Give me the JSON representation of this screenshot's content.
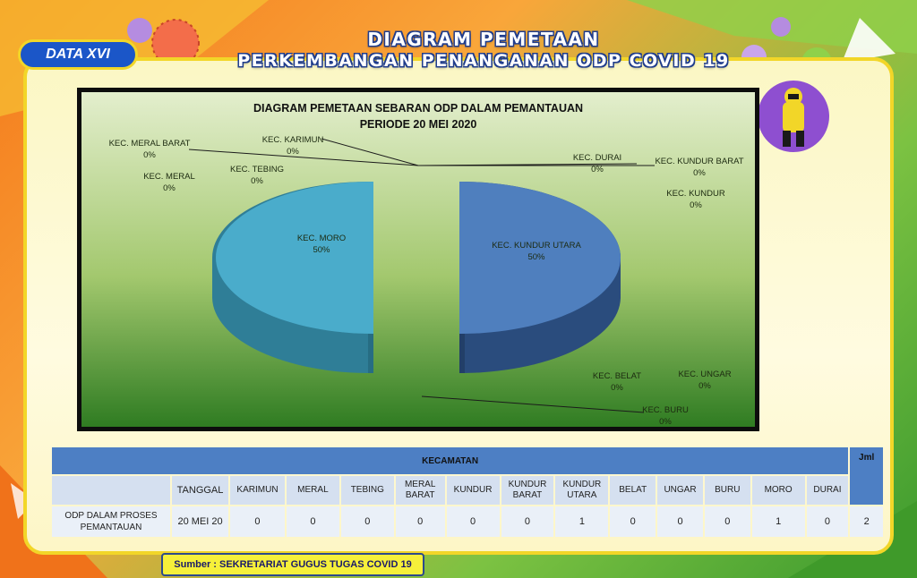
{
  "badge": "DATA XVI",
  "header": {
    "title_line1": "DIAGRAM PEMETAAN",
    "title_line2": "PERKEMBANGAN PENANGANAN ODP  COVID 19"
  },
  "chart_data": {
    "type": "pie",
    "title_line1": "DIAGRAM PEMETAAN SEBARAN ODP DALAM PEMANTAUAN",
    "title_line2": "PERIODE 20 MEI 2020",
    "slices": [
      {
        "name": "KEC. KARIMUN",
        "value": 0,
        "percent": "0%"
      },
      {
        "name": "KEC.  MERAL",
        "value": 0,
        "percent": "0%"
      },
      {
        "name": "KEC. TEBING",
        "value": 0,
        "percent": "0%"
      },
      {
        "name": "KEC. MERAL BARAT",
        "value": 0,
        "percent": "0%"
      },
      {
        "name": "KEC. KUNDUR",
        "value": 0,
        "percent": "0%"
      },
      {
        "name": "KEC. KUNDUR BARAT",
        "value": 0,
        "percent": "0%"
      },
      {
        "name": "KEC. KUNDUR UTARA",
        "value": 1,
        "percent": "50%"
      },
      {
        "name": "KEC. BELAT",
        "value": 0,
        "percent": "0%"
      },
      {
        "name": "KEC. UNGAR",
        "value": 0,
        "percent": "0%"
      },
      {
        "name": "KEC. BURU",
        "value": 0,
        "percent": "0%"
      },
      {
        "name": "KEC. MORO",
        "value": 1,
        "percent": "50%"
      },
      {
        "name": "KEC.  DURAI",
        "value": 0,
        "percent": "0%"
      }
    ],
    "colors": {
      "moro": "#4aaccb",
      "kundur_utara": "#4f7fbe"
    }
  },
  "table": {
    "group_header": "KECAMATAN",
    "total_header": "Jml",
    "date_header": "TANGGAL",
    "columns": [
      "KARIMUN",
      "MERAL",
      "TEBING",
      "MERAL BARAT",
      "KUNDUR",
      "KUNDUR BARAT",
      "KUNDUR UTARA",
      "BELAT",
      "UNGAR",
      "BURU",
      "MORO",
      "DURAI"
    ],
    "row": {
      "label": "ODP DALAM PROSES PEMANTAUAN",
      "date": "20 MEI 20",
      "values": [
        "0",
        "0",
        "0",
        "0",
        "0",
        "0",
        "1",
        "0",
        "0",
        "0",
        "1",
        "0"
      ],
      "total": "2"
    }
  },
  "source": "Sumber : SEKRETARIAT GUGUS TUGAS COVID 19"
}
